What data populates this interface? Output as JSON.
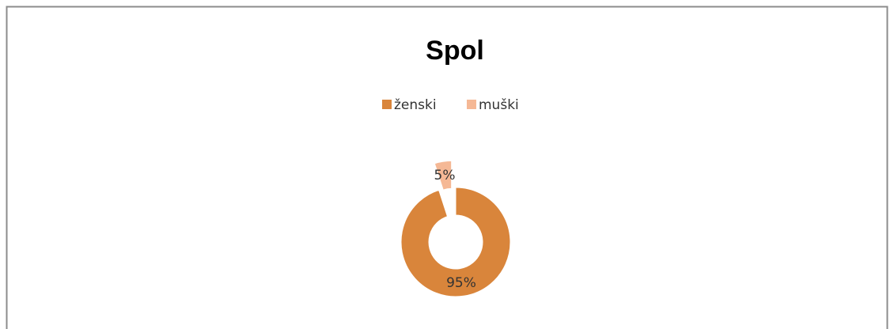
{
  "chart_data": {
    "type": "donut",
    "title": "Spol",
    "categories": [
      "ženski",
      "muški"
    ],
    "values": [
      95,
      5
    ],
    "value_labels": [
      "95%",
      "5%"
    ],
    "colors": [
      "#d9853b",
      "#f5b895"
    ],
    "legend": "top"
  }
}
